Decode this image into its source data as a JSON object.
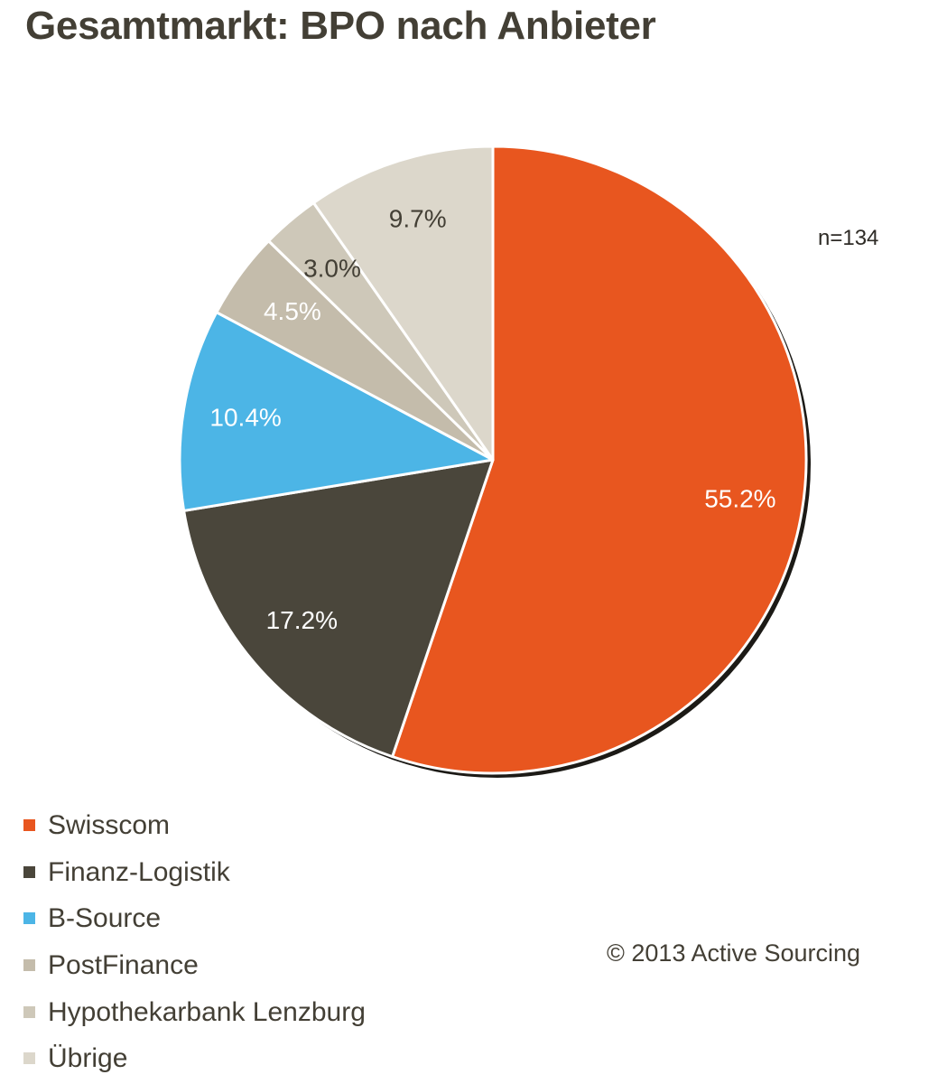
{
  "chart_data": {
    "type": "pie",
    "title": "Gesamtmarkt: BPO nach Anbieter",
    "note": "n=134",
    "copyright": "© 2013 Active Sourcing",
    "legend_position": "bottom-left",
    "slices": [
      {
        "label": "Swisscom",
        "value": 55.2,
        "value_label": "55.2%",
        "color": "#e8561f"
      },
      {
        "label": "Finanz-Logistik",
        "value": 17.2,
        "value_label": "17.2%",
        "color": "#4a463b"
      },
      {
        "label": "B-Source",
        "value": 10.4,
        "value_label": "10.4%",
        "color": "#4cb5e6"
      },
      {
        "label": "PostFinance",
        "value": 4.5,
        "value_label": "4.5%",
        "color": "#c4bcab"
      },
      {
        "label": "Hypothekarbank Lenzburg",
        "value": 3.0,
        "value_label": "3.0%",
        "color": "#cec8b9"
      },
      {
        "label": "Übrige",
        "value": 9.7,
        "value_label": "9.7%",
        "color": "#dcd7cb"
      }
    ],
    "value_label_colors": [
      "#ffffff",
      "#ffffff",
      "#ffffff",
      "#ffffff",
      "#433f35",
      "#433f35"
    ]
  }
}
